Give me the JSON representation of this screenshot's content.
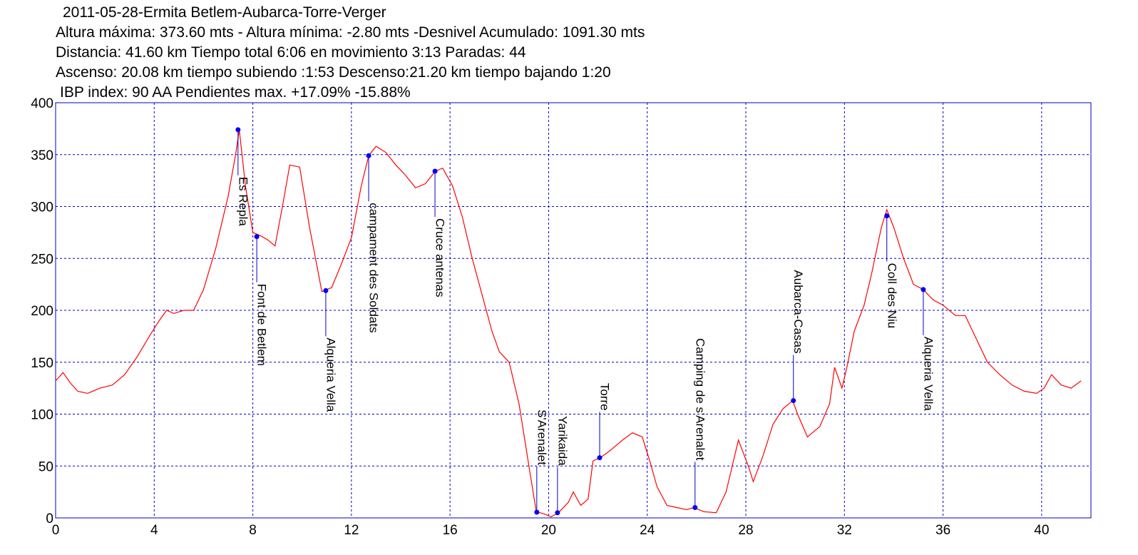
{
  "chart_data": {
    "type": "line",
    "title": "2011-05-28-Ermita Betlem-Aubarca-Torre-Verger",
    "subtitle": [
      "Altura máxima: 373.60 mts - Altura mínima: -2.80 mts -Desnivel Acumulado: 1091.30 mts",
      "Distancia: 41.60 km  Tiempo total 6:06  en movimiento 3:13 Paradas: 44",
      "Ascenso: 20.08 km  tiempo subiendo :1:53  Descenso:21.20 km tiempo bajando 1:20",
      "IBP index: 90 AA  Pendientes max. +17.09%  -15.88%"
    ],
    "x": [
      0,
      0.3,
      0.6,
      0.9,
      1.3,
      1.8,
      2.3,
      2.8,
      3.3,
      3.8,
      4.2,
      4.5,
      4.8,
      5.2,
      5.6,
      6.0,
      6.5,
      7.0,
      7.3,
      7.45,
      7.7,
      8.0,
      8.3,
      8.6,
      8.9,
      9.2,
      9.5,
      9.9,
      10.3,
      10.8,
      11.2,
      11.6,
      12.0,
      12.4,
      12.7,
      13.0,
      13.4,
      13.8,
      14.2,
      14.6,
      15.0,
      15.4,
      15.7,
      16.1,
      16.5,
      16.9,
      17.3,
      17.7,
      18.0,
      18.4,
      18.8,
      19.2,
      19.5,
      19.8,
      20.1,
      20.4,
      20.8,
      21.0,
      21.3,
      21.6,
      21.8,
      22.1,
      22.5,
      23.0,
      23.4,
      23.8,
      24.1,
      24.4,
      24.8,
      25.2,
      25.6,
      25.9,
      26.3,
      26.8,
      27.2,
      27.7,
      28.1,
      28.3,
      28.7,
      29.1,
      29.5,
      29.9,
      30.1,
      30.5,
      31.0,
      31.4,
      31.6,
      31.9,
      32.1,
      32.4,
      32.8,
      33.1,
      33.5,
      33.72,
      34.0,
      34.4,
      34.8,
      35.2,
      35.6,
      36.0,
      36.5,
      36.9,
      37.3,
      37.8,
      38.3,
      38.8,
      39.3,
      39.8,
      40.1,
      40.4,
      40.8,
      41.2,
      41.6
    ],
    "values": [
      132,
      140,
      130,
      122,
      120,
      125,
      128,
      138,
      155,
      175,
      190,
      200,
      197,
      200,
      200,
      220,
      260,
      310,
      350,
      374,
      320,
      275,
      272,
      268,
      262,
      300,
      340,
      338,
      280,
      218,
      222,
      245,
      270,
      320,
      349,
      358,
      352,
      340,
      330,
      318,
      322,
      334,
      337,
      320,
      290,
      250,
      215,
      180,
      160,
      150,
      110,
      50,
      6,
      4,
      1,
      5,
      15,
      25,
      12,
      18,
      55,
      58,
      65,
      75,
      82,
      78,
      55,
      30,
      12,
      10,
      8,
      10,
      6,
      5,
      25,
      75,
      50,
      35,
      60,
      90,
      105,
      113,
      100,
      78,
      88,
      110,
      145,
      125,
      145,
      180,
      205,
      235,
      280,
      297,
      280,
      250,
      225,
      220,
      210,
      205,
      195,
      195,
      175,
      150,
      138,
      128,
      122,
      120,
      125,
      138,
      128,
      125,
      132
    ],
    "color": "#ff0000",
    "annotations": [
      {
        "label": "Es Repla",
        "x": 7.4,
        "y": 374
      },
      {
        "label": "Font de Betlem",
        "x": 8.16,
        "y": 271
      },
      {
        "label": "Alqueria Vella",
        "x": 10.96,
        "y": 219
      },
      {
        "label": "campament des Soldats",
        "x": 12.7,
        "y": 349
      },
      {
        "label": "Cruce antenas",
        "x": 15.39,
        "y": 334
      },
      {
        "label": "S'Arenalet",
        "x": 19.52,
        "y": 5.5
      },
      {
        "label": "Yarikaida",
        "x": 20.36,
        "y": 5
      },
      {
        "label": "Torre",
        "x": 22.07,
        "y": 58
      },
      {
        "label": "Camping de s'Arenalet",
        "x": 25.94,
        "y": 10
      },
      {
        "label": "Aubarca-Casas",
        "x": 29.93,
        "y": 113
      },
      {
        "label": "Coll des Niu",
        "x": 33.72,
        "y": 291
      },
      {
        "label": "Alqueria Vella",
        "x": 35.2,
        "y": 220
      }
    ],
    "xlim": [
      0,
      42
    ],
    "xticks": [
      0,
      4,
      8,
      12,
      16,
      20,
      24,
      28,
      32,
      36,
      40
    ],
    "ylim": [
      0,
      400
    ],
    "yticks": [
      0,
      50,
      100,
      150,
      200,
      250,
      300,
      350,
      400
    ],
    "grid": true
  }
}
